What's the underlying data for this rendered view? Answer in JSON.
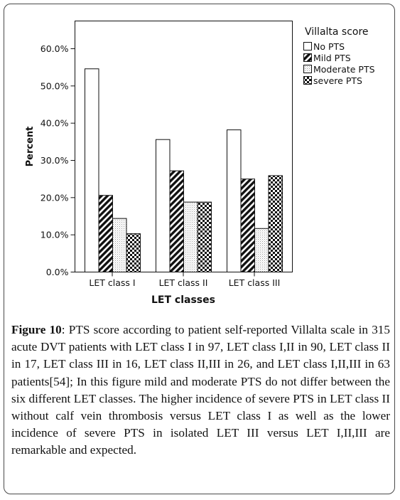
{
  "chart_data": {
    "type": "bar",
    "xlabel": "LET classes",
    "ylabel": "Percent",
    "categories": [
      "LET class I",
      "LET class II",
      "LET class III"
    ],
    "yticks": [
      "0.0%",
      "10.0%",
      "20.0%",
      "30.0%",
      "40.0%",
      "50.0%",
      "60.0%"
    ],
    "ylim": [
      0,
      65
    ],
    "legend_title": "Villalta score",
    "legend_position": "top-right",
    "grid": false,
    "series": [
      {
        "name": "No PTS",
        "values": [
          54.6,
          35.6,
          38.2
        ],
        "pattern": "white"
      },
      {
        "name": "Mild PTS",
        "values": [
          20.6,
          27.2,
          25.0
        ],
        "pattern": "diagonal"
      },
      {
        "name": "Moderate PTS",
        "values": [
          14.4,
          18.8,
          11.7
        ],
        "pattern": "dots"
      },
      {
        "name": "severe PTS",
        "values": [
          10.3,
          18.8,
          25.9
        ],
        "pattern": "checker"
      }
    ]
  },
  "caption": {
    "label": "Figure 10",
    "text": ": PTS score according to patient self-reported Villalta scale in 315 acute DVT patients with LET class I in 97, LET class I,II in 90, LET class II in 17, LET class III in 16, LET class II,III in 26, and LET class I,II,III in 63 patients[54]; In this figure mild and moderate PTS do not differ between the six different LET classes. The higher incidence of severe PTS in LET class II without calf vein thrombosis versus LET class I as well as the lower incidence of severe PTS in isolated LET III versus LET I,II,III are remarkable and expected."
  }
}
